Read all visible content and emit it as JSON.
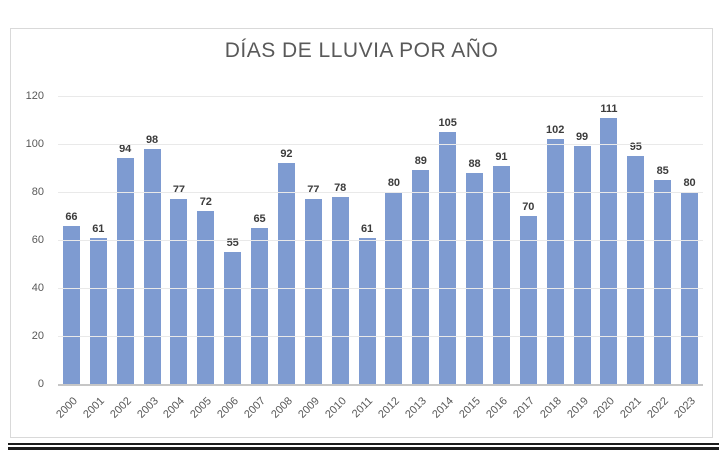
{
  "chart_data": {
    "type": "bar",
    "title": "DÍAS DE LLUVIA POR AÑO",
    "categories": [
      "2000",
      "2001",
      "2002",
      "2003",
      "2004",
      "2005",
      "2006",
      "2007",
      "2008",
      "2009",
      "2010",
      "2011",
      "2012",
      "2013",
      "2014",
      "2015",
      "2016",
      "2017",
      "2018",
      "2019",
      "2020",
      "2021",
      "2022",
      "2023"
    ],
    "values": [
      66,
      61,
      94,
      98,
      77,
      72,
      55,
      65,
      92,
      77,
      78,
      61,
      80,
      89,
      105,
      88,
      91,
      70,
      102,
      99,
      111,
      95,
      85,
      80
    ],
    "xlabel": "",
    "ylabel": "",
    "ylim": [
      0,
      120
    ],
    "yticks": [
      0,
      20,
      40,
      60,
      80,
      100,
      120
    ],
    "grid": true,
    "legend": "none",
    "data_labels": true,
    "colors": {
      "bar": "#7E9BD1",
      "title": "#595959",
      "axis_text": "#595959",
      "data_label": "#3C3C3C",
      "gridline": "#E9E9E9",
      "axis_line": "#C6C6C6",
      "chart_border": "#D9D9D9",
      "bottom_rule": "#1C1C1C"
    }
  }
}
